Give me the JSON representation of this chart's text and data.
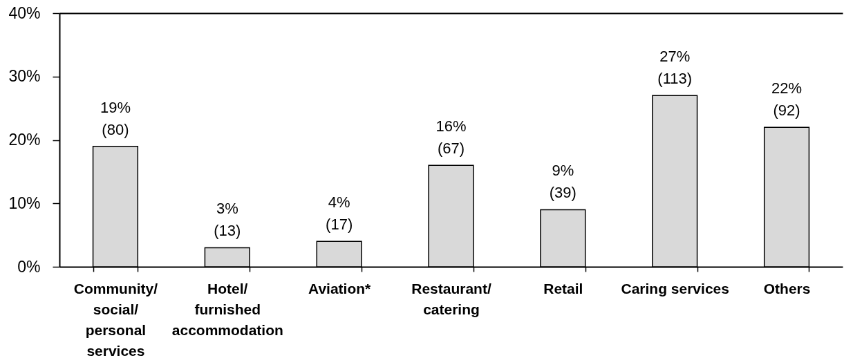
{
  "chart_data": {
    "type": "bar",
    "categories": [
      "Community/\nsocial/\npersonal\nservices",
      "Hotel/\nfurnished\naccommodation",
      "Aviation*",
      "Restaurant/\ncatering",
      "Retail",
      "Caring services",
      "Others"
    ],
    "values": [
      19,
      3,
      4,
      16,
      9,
      27,
      22
    ],
    "value_labels": [
      "19%\n(80)",
      "3%\n(13)",
      "4%\n(17)",
      "16%\n(67)",
      "9%\n(39)",
      "27%\n(113)",
      "22%\n(92)"
    ],
    "color": "#d9d9d9",
    "ylim": [
      0,
      40
    ],
    "yticks": [
      {
        "value": 0,
        "label": "0%"
      },
      {
        "value": 10,
        "label": "10%"
      },
      {
        "value": 20,
        "label": "20%"
      },
      {
        "value": 30,
        "label": "30%"
      },
      {
        "value": 40,
        "label": "40%"
      }
    ],
    "grid": false
  }
}
